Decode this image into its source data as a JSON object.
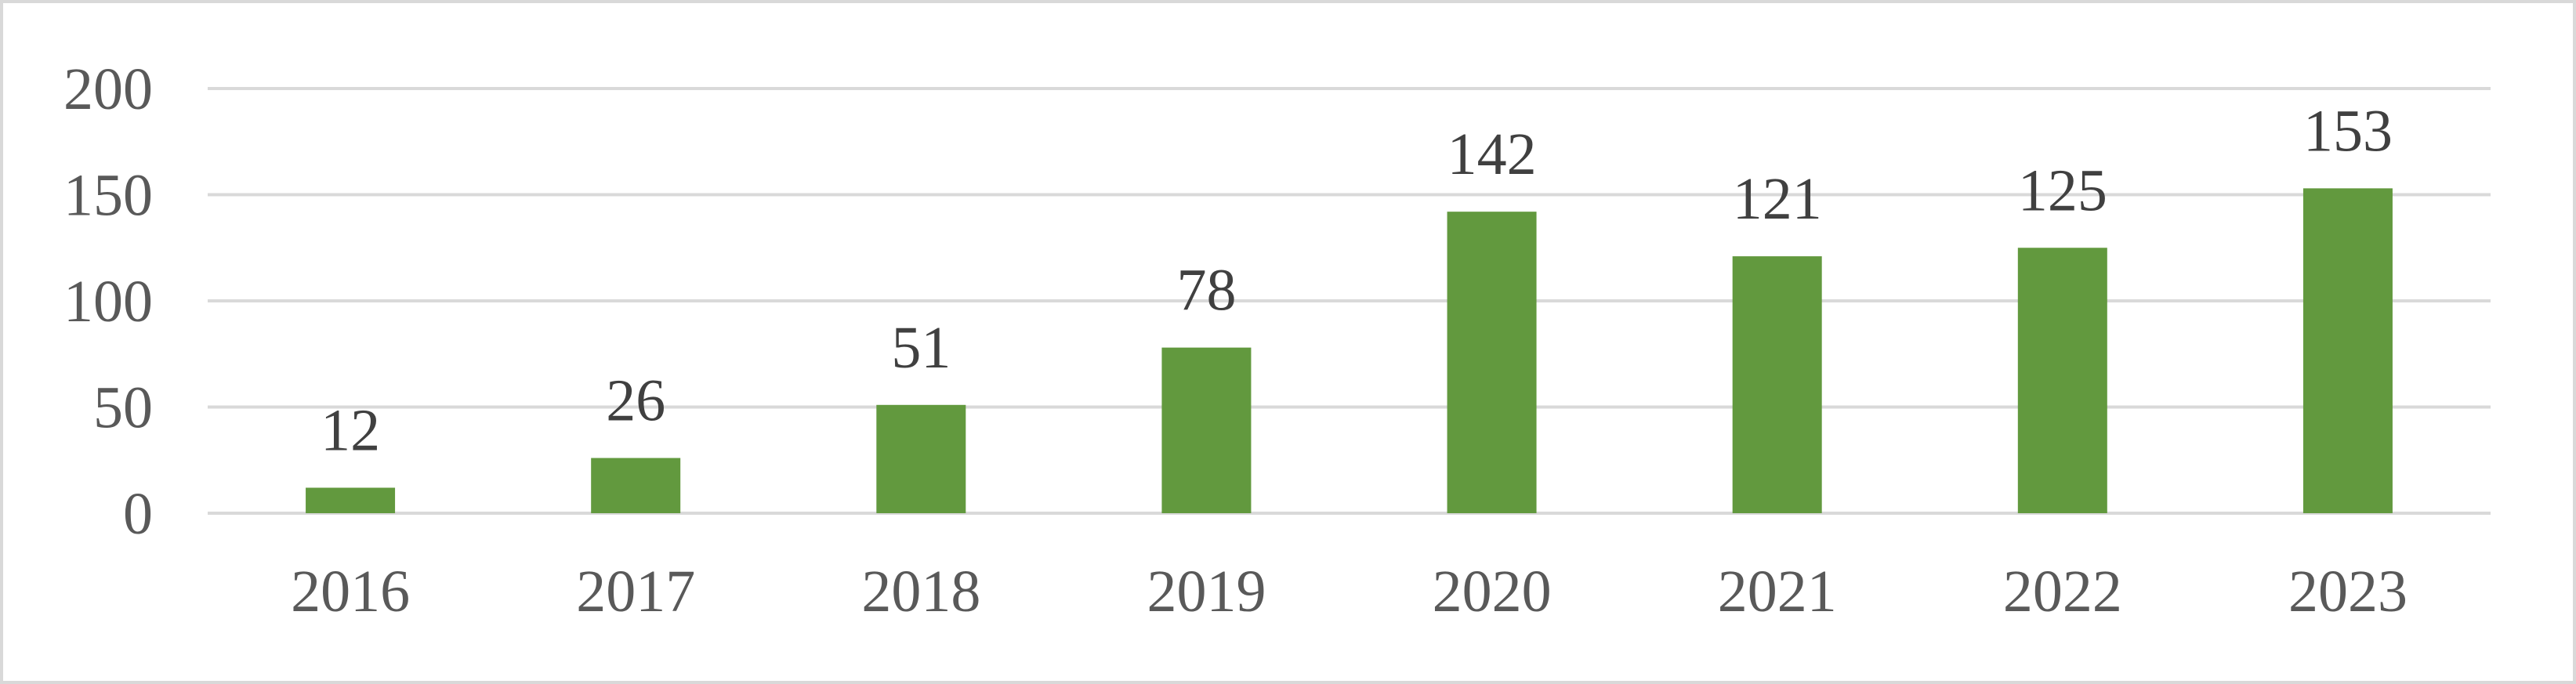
{
  "chart_data": {
    "type": "bar",
    "title": "",
    "xlabel": "",
    "ylabel": "",
    "categories": [
      "2016",
      "2017",
      "2018",
      "2019",
      "2020",
      "2021",
      "2022",
      "2023"
    ],
    "values": [
      12,
      26,
      51,
      78,
      142,
      121,
      125,
      153
    ],
    "data_labels": [
      "12",
      "26",
      "51",
      "78",
      "142",
      "121",
      "125",
      "153"
    ],
    "ylim": [
      0,
      200
    ],
    "yticks": [
      0,
      50,
      100,
      150,
      200
    ],
    "ytick_labels": [
      "0",
      "50",
      "100",
      "150",
      "200"
    ],
    "grid": true,
    "legend": "none",
    "colors": {
      "bar": "#62993e",
      "grid": "#d9d9d9",
      "frame": "#d9d9d9",
      "text": "#595959"
    }
  }
}
